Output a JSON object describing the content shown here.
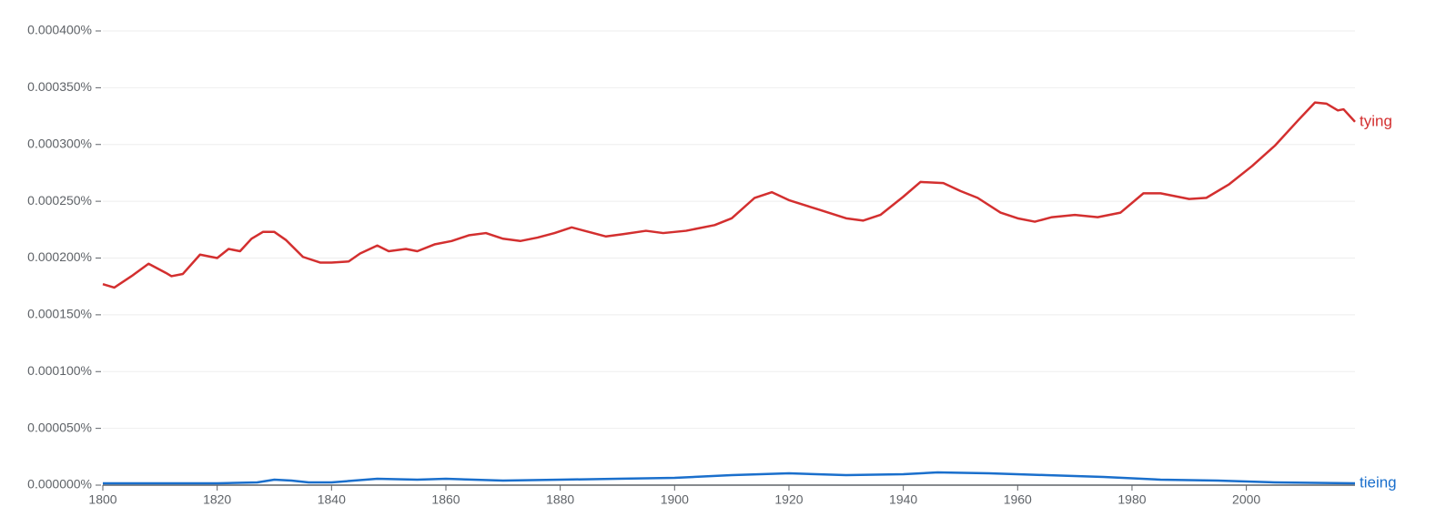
{
  "chart_data": {
    "type": "line",
    "xlim": [
      1800,
      2019
    ],
    "xticks": [
      1800,
      1820,
      1840,
      1860,
      1880,
      1900,
      1920,
      1940,
      1960,
      1980,
      2000
    ],
    "ylim": [
      0,
      0.0004
    ],
    "yticks": [
      {
        "value": 0,
        "label": "0.000000%"
      },
      {
        "value": 5e-05,
        "label": "0.000050%"
      },
      {
        "value": 0.0001,
        "label": "0.000100%"
      },
      {
        "value": 0.00015,
        "label": "0.000150%"
      },
      {
        "value": 0.0002,
        "label": "0.000200%"
      },
      {
        "value": 0.00025,
        "label": "0.000250%"
      },
      {
        "value": 0.0003,
        "label": "0.000300%"
      },
      {
        "value": 0.00035,
        "label": "0.000350%"
      },
      {
        "value": 0.0004,
        "label": "0.000400%"
      }
    ],
    "grid": true,
    "series": [
      {
        "name": "tying",
        "color": "#d32f2f",
        "x": [
          1800,
          1802,
          1805,
          1808,
          1811,
          1812,
          1814,
          1817,
          1820,
          1822,
          1824,
          1826,
          1828,
          1830,
          1832,
          1835,
          1838,
          1840,
          1843,
          1845,
          1848,
          1850,
          1853,
          1855,
          1858,
          1861,
          1864,
          1867,
          1870,
          1873,
          1876,
          1879,
          1882,
          1885,
          1888,
          1891,
          1895,
          1898,
          1902,
          1907,
          1910,
          1914,
          1917,
          1920,
          1925,
          1930,
          1933,
          1936,
          1940,
          1943,
          1947,
          1950,
          1953,
          1957,
          1960,
          1963,
          1966,
          1970,
          1974,
          1978,
          1982,
          1985,
          1990,
          1993,
          1997,
          2001,
          2005,
          2009,
          2012,
          2014,
          2016,
          2017,
          2019
        ],
        "values": [
          0.000177,
          0.000174,
          0.000184,
          0.000195,
          0.000187,
          0.000184,
          0.000186,
          0.000203,
          0.0002,
          0.000208,
          0.000206,
          0.000217,
          0.000223,
          0.000223,
          0.000216,
          0.000201,
          0.000196,
          0.000196,
          0.000197,
          0.000204,
          0.000211,
          0.000206,
          0.000208,
          0.000206,
          0.000212,
          0.000215,
          0.00022,
          0.000222,
          0.000217,
          0.000215,
          0.000218,
          0.000222,
          0.000227,
          0.000223,
          0.000219,
          0.000221,
          0.000224,
          0.000222,
          0.000224,
          0.000229,
          0.000235,
          0.000253,
          0.000258,
          0.000251,
          0.000243,
          0.000235,
          0.000233,
          0.000238,
          0.000254,
          0.000267,
          0.000266,
          0.000259,
          0.000253,
          0.00024,
          0.000235,
          0.000232,
          0.000236,
          0.000238,
          0.000236,
          0.00024,
          0.000257,
          0.000257,
          0.000252,
          0.000253,
          0.000265,
          0.000281,
          0.000299,
          0.000321,
          0.000337,
          0.000336,
          0.00033,
          0.000331,
          0.00032
        ]
      },
      {
        "name": "tieing",
        "color": "#1a6fcc",
        "x": [
          1800,
          1810,
          1820,
          1827,
          1830,
          1833,
          1836,
          1840,
          1848,
          1855,
          1860,
          1870,
          1880,
          1890,
          1900,
          1910,
          1920,
          1930,
          1940,
          1946,
          1955,
          1965,
          1975,
          1985,
          1995,
          2005,
          2019
        ],
        "values": [
          1.6e-06,
          1.6e-06,
          1.6e-06,
          2.4e-06,
          4.8e-06,
          4e-06,
          2.4e-06,
          2.4e-06,
          5.6e-06,
          4.8e-06,
          5.6e-06,
          4e-06,
          4.8e-06,
          5.6e-06,
          6.4e-06,
          8.8e-06,
          1.04e-05,
          8.8e-06,
          9.6e-06,
          1.12e-05,
          1.04e-05,
          8.8e-06,
          7.2e-06,
          4.8e-06,
          4e-06,
          2.4e-06,
          1.6e-06
        ]
      }
    ]
  }
}
